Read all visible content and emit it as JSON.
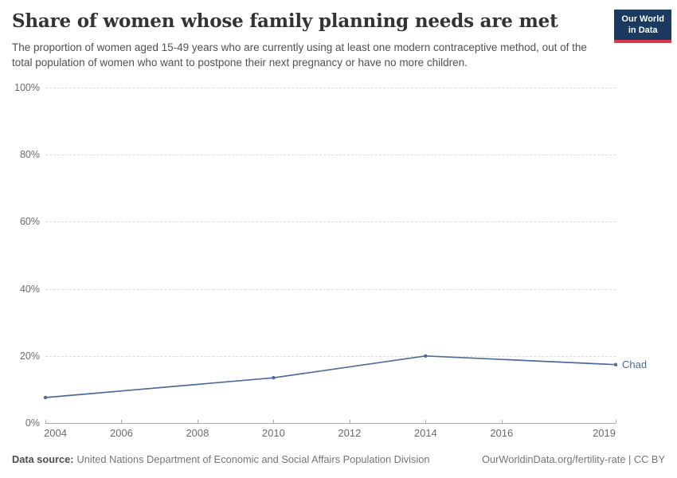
{
  "header": {
    "title": "Share of women whose family planning needs are met",
    "subtitle": "The proportion of women aged 15-49 years who are currently using at least one modern contraceptive method, out of the total population of women who want to postpone their next pregnancy or have no more children."
  },
  "logo": {
    "line1": "Our World",
    "line2": "in Data",
    "background_color": "#1B3A60",
    "accent_color": "#D73746"
  },
  "chart_data": {
    "type": "line",
    "title": "Share of women whose family planning needs are met",
    "xlabel": "",
    "ylabel": "",
    "xlim": [
      2004,
      2019
    ],
    "ylim": [
      0,
      100
    ],
    "x_ticks": [
      2004,
      2006,
      2008,
      2010,
      2012,
      2014,
      2016,
      2019
    ],
    "y_ticks": [
      0,
      20,
      40,
      60,
      80,
      100
    ],
    "y_tick_suffix": "%",
    "grid": "horizontal-dashed",
    "legend_position": "line-end-label",
    "series": [
      {
        "name": "Chad",
        "color": "#4C6A9C",
        "x": [
          2004,
          2010,
          2014,
          2019
        ],
        "values": [
          7.6,
          13.5,
          20.0,
          17.4
        ]
      }
    ]
  },
  "footer": {
    "source_label": "Data source:",
    "source_value": "United Nations Department of Economic and Social Affairs Population Division",
    "attribution": "OurWorldinData.org/fertility-rate | CC BY"
  }
}
